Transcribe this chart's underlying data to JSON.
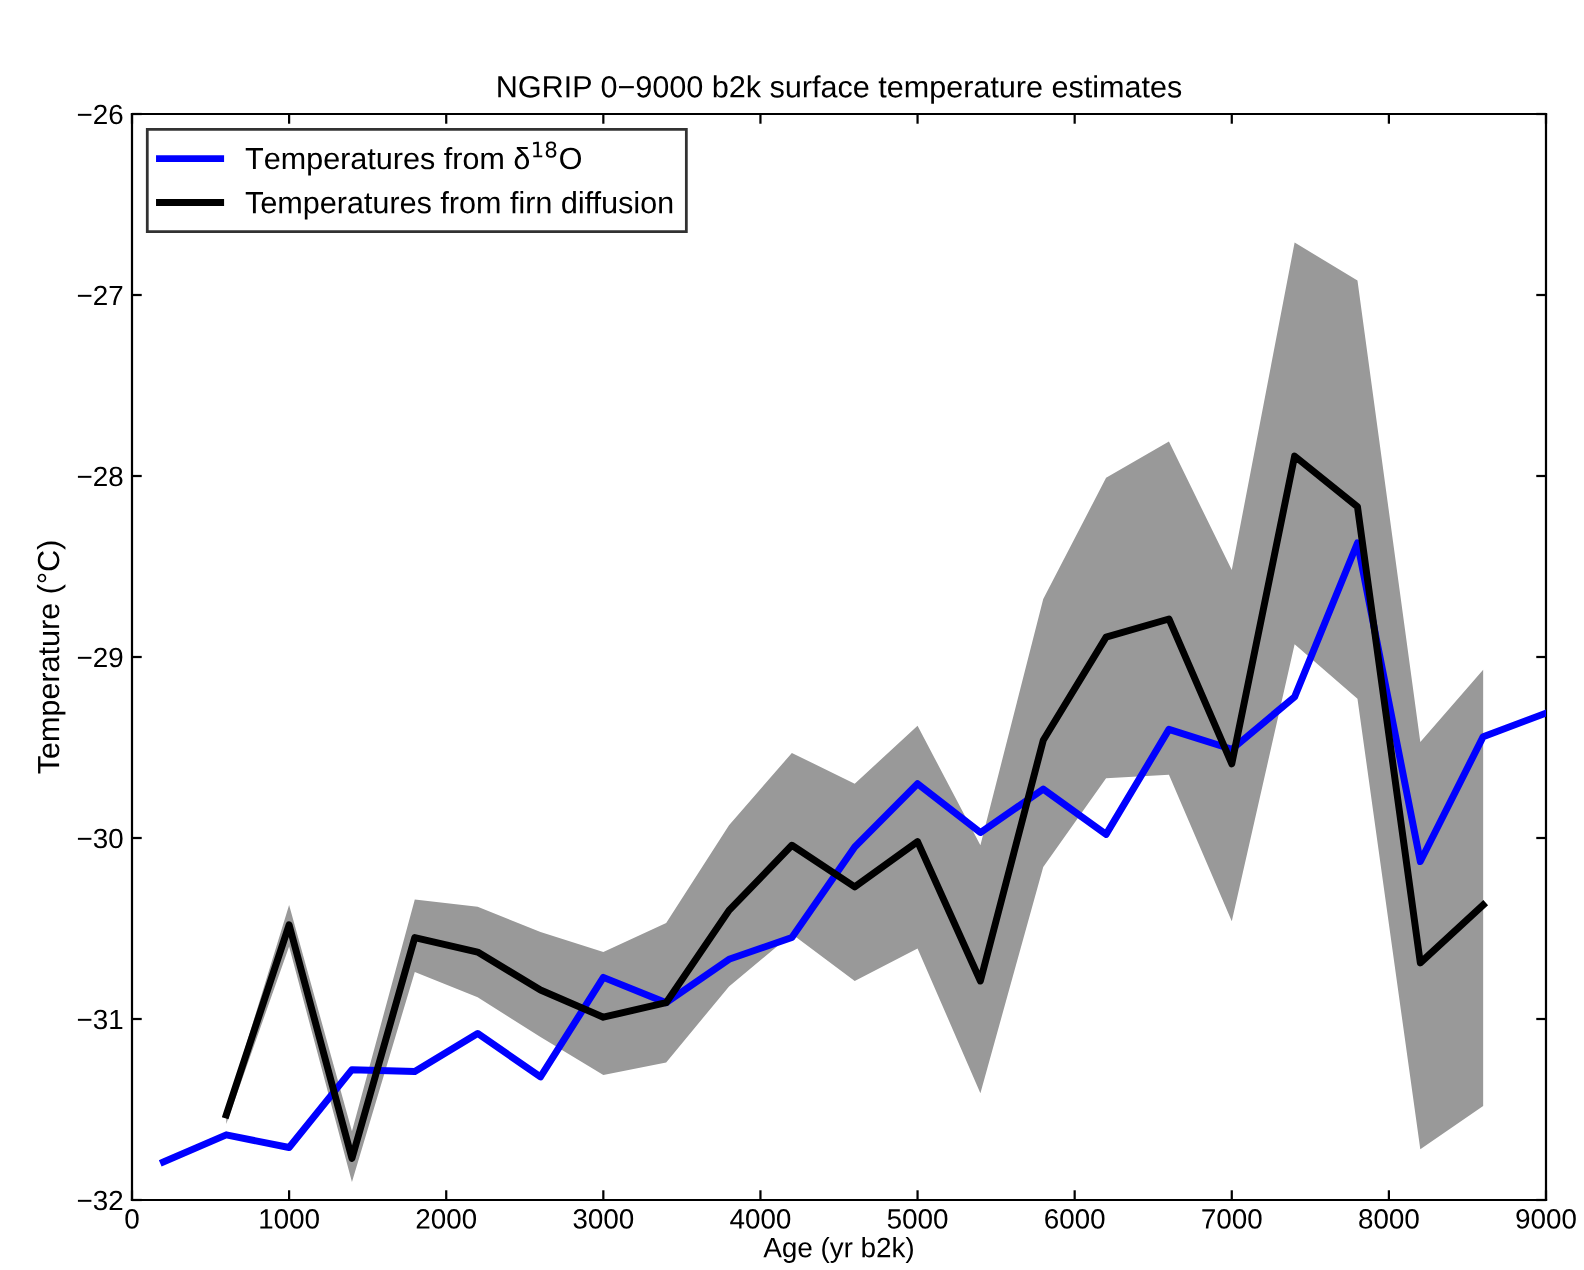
{
  "chart_data": {
    "type": "line",
    "title": "NGRIP 0−9000 b2k surface temperature estimates",
    "xlabel": "Age (yr b2k)",
    "ylabel": "Temperature (°C)",
    "xlim": [
      0,
      9000
    ],
    "xticks": [
      0,
      1000,
      2000,
      3000,
      4000,
      5000,
      6000,
      7000,
      8000,
      9000
    ],
    "ylim": [
      -32,
      -26
    ],
    "yticks": [
      -32,
      -31,
      -30,
      -29,
      -28,
      -27,
      -26
    ],
    "grid": false,
    "legend": "top left",
    "marker": "none",
    "line_style": "solid",
    "series": [
      {
        "name": "Temperatures from δ$^{18}$O",
        "color": "#0000ff",
        "x": [
          200,
          600,
          1000,
          1400,
          1800,
          2200,
          2600,
          3000,
          3400,
          3800,
          4200,
          4600,
          5000,
          5400,
          5800,
          6200,
          6600,
          7000,
          7400,
          7800,
          8200,
          8600,
          9000
        ],
        "values": [
          -31.79,
          -31.64,
          -31.71,
          -31.28,
          -31.29,
          -31.08,
          -31.32,
          -30.77,
          -30.91,
          -30.67,
          -30.55,
          -30.05,
          -29.7,
          -29.97,
          -29.73,
          -29.98,
          -29.4,
          -29.51,
          -29.22,
          -28.37,
          -30.13,
          -29.44,
          -29.31
        ]
      },
      {
        "name": "Temperatures from firn diffusion",
        "color": "#000000",
        "x": [
          600,
          1000,
          1400,
          1800,
          2200,
          2600,
          3000,
          3400,
          3800,
          4200,
          4600,
          5000,
          5400,
          5800,
          6200,
          6600,
          7000,
          7400,
          7800,
          8200,
          8600
        ],
        "values": [
          -31.53,
          -30.48,
          -31.77,
          -30.55,
          -30.63,
          -30.84,
          -30.99,
          -30.91,
          -30.4,
          -30.04,
          -30.27,
          -30.02,
          -30.79,
          -29.46,
          -28.89,
          -28.79,
          -29.59,
          -27.89,
          -28.17,
          -30.69,
          -30.37
        ],
        "upper": [
          -31.5,
          -30.37,
          -31.62,
          -30.34,
          -30.38,
          -30.52,
          -30.63,
          -30.47,
          -29.93,
          -29.53,
          -29.7,
          -29.38,
          -30.04,
          -28.68,
          -28.01,
          -27.81,
          -28.52,
          -26.71,
          -26.92,
          -29.47,
          -29.07
        ],
        "lower": [
          -31.58,
          -30.6,
          -31.9,
          -30.74,
          -30.88,
          -31.1,
          -31.31,
          -31.24,
          -30.82,
          -30.53,
          -30.79,
          -30.61,
          -31.41,
          -30.16,
          -29.67,
          -29.65,
          -30.46,
          -28.93,
          -29.23,
          -31.72,
          -31.48
        ]
      }
    ]
  }
}
